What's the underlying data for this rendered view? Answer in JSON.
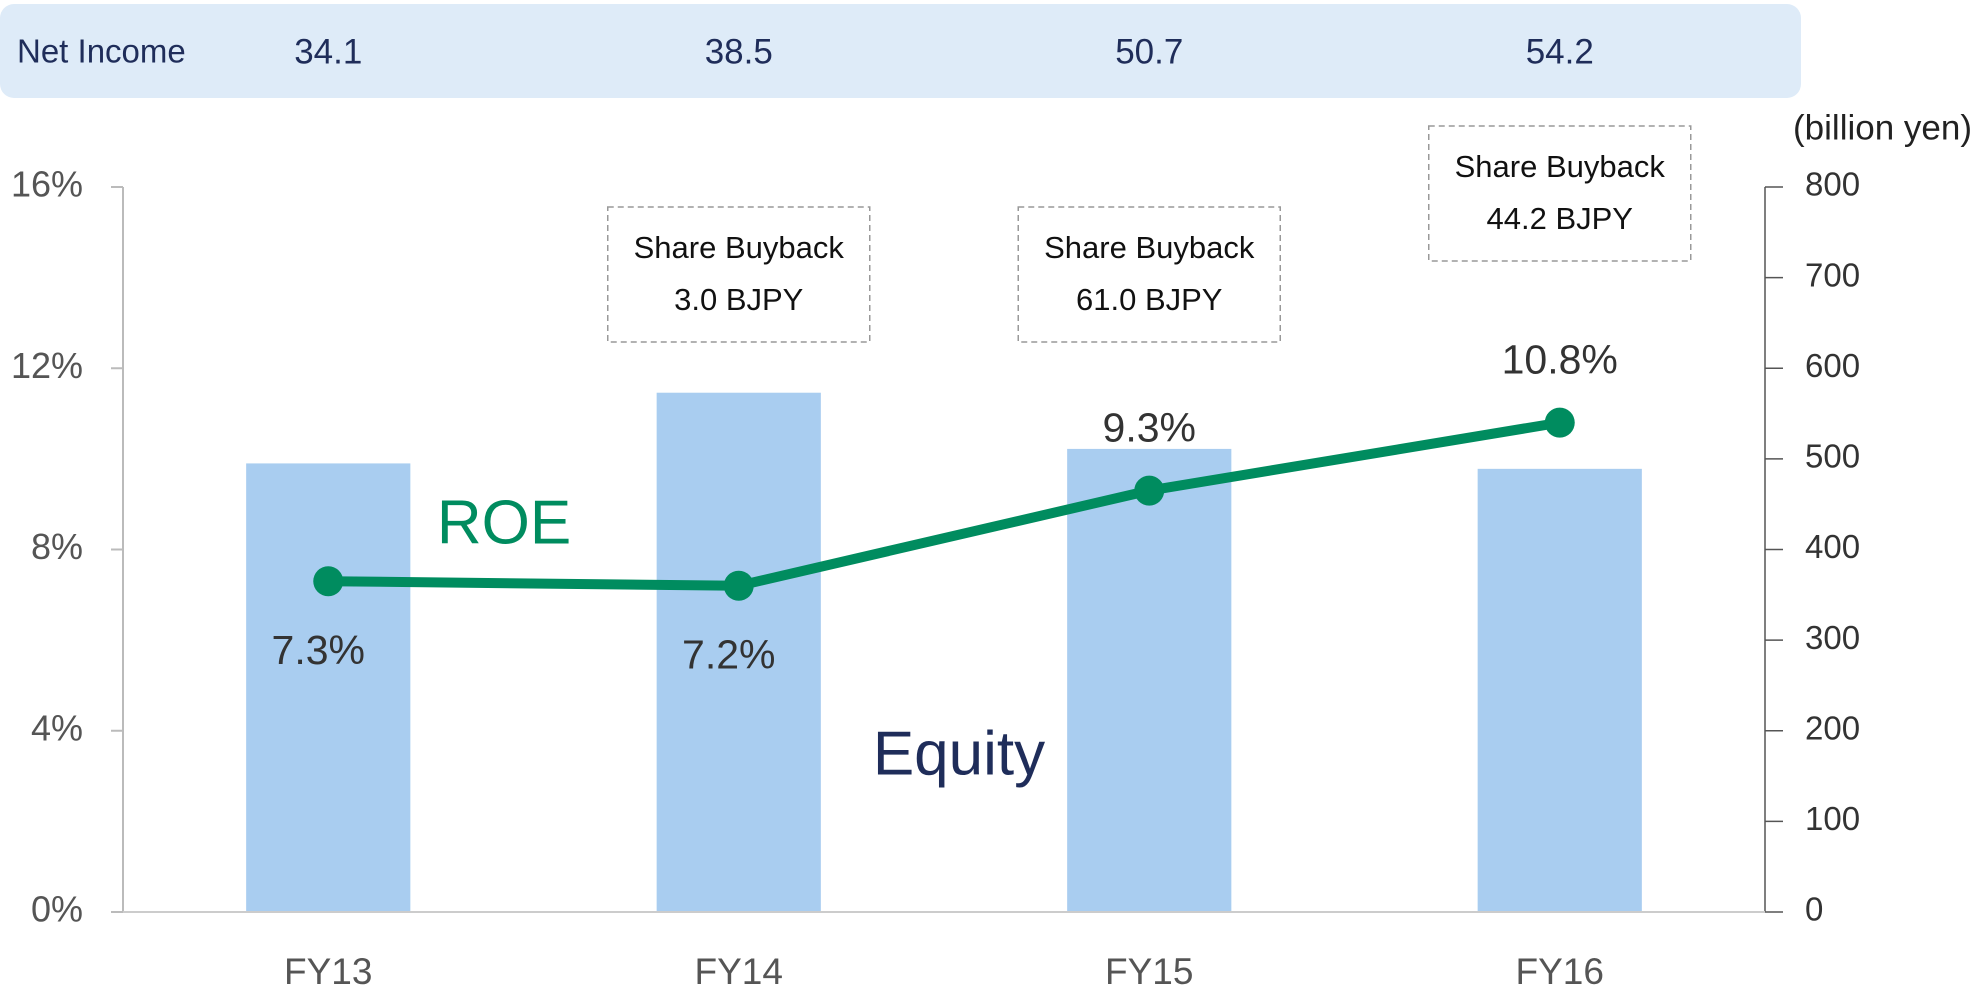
{
  "chart_data": {
    "type": "combo",
    "categories": [
      "FY13",
      "FY14",
      "FY15",
      "FY16"
    ],
    "net_income": {
      "label": "Net Income",
      "values": [
        34.1,
        38.5,
        50.7,
        54.2
      ]
    },
    "series": [
      {
        "name": "Equity",
        "type": "bar",
        "axis": "y2",
        "color": "#a9cdf0",
        "values": [
          495,
          573,
          511,
          489
        ]
      },
      {
        "name": "ROE",
        "type": "line",
        "axis": "y",
        "color": "#008c5f",
        "values": [
          7.3,
          7.2,
          9.3,
          10.8
        ],
        "value_labels": [
          "7.3%",
          "7.2%",
          "9.3%",
          "10.8%"
        ]
      }
    ],
    "ylim": [
      0,
      16
    ],
    "yticks": [
      {
        "value": 0,
        "label": "0%"
      },
      {
        "value": 4,
        "label": "4%"
      },
      {
        "value": 8,
        "label": "8%"
      },
      {
        "value": 12,
        "label": "12%"
      },
      {
        "value": 16,
        "label": "16%"
      }
    ],
    "y2lim": [
      0,
      800
    ],
    "y2ticks": [
      0,
      100,
      200,
      300,
      400,
      500,
      600,
      700,
      800
    ],
    "y2_label": "(billion yen)",
    "annotations": [
      {
        "category": "FY14",
        "lines": [
          "Share Buyback",
          "3.0 BJPY"
        ]
      },
      {
        "category": "FY15",
        "lines": [
          "Share Buyback",
          "61.0 BJPY"
        ]
      },
      {
        "category": "FY16",
        "lines": [
          "Share Buyback",
          "44.2 BJPY"
        ]
      }
    ]
  }
}
